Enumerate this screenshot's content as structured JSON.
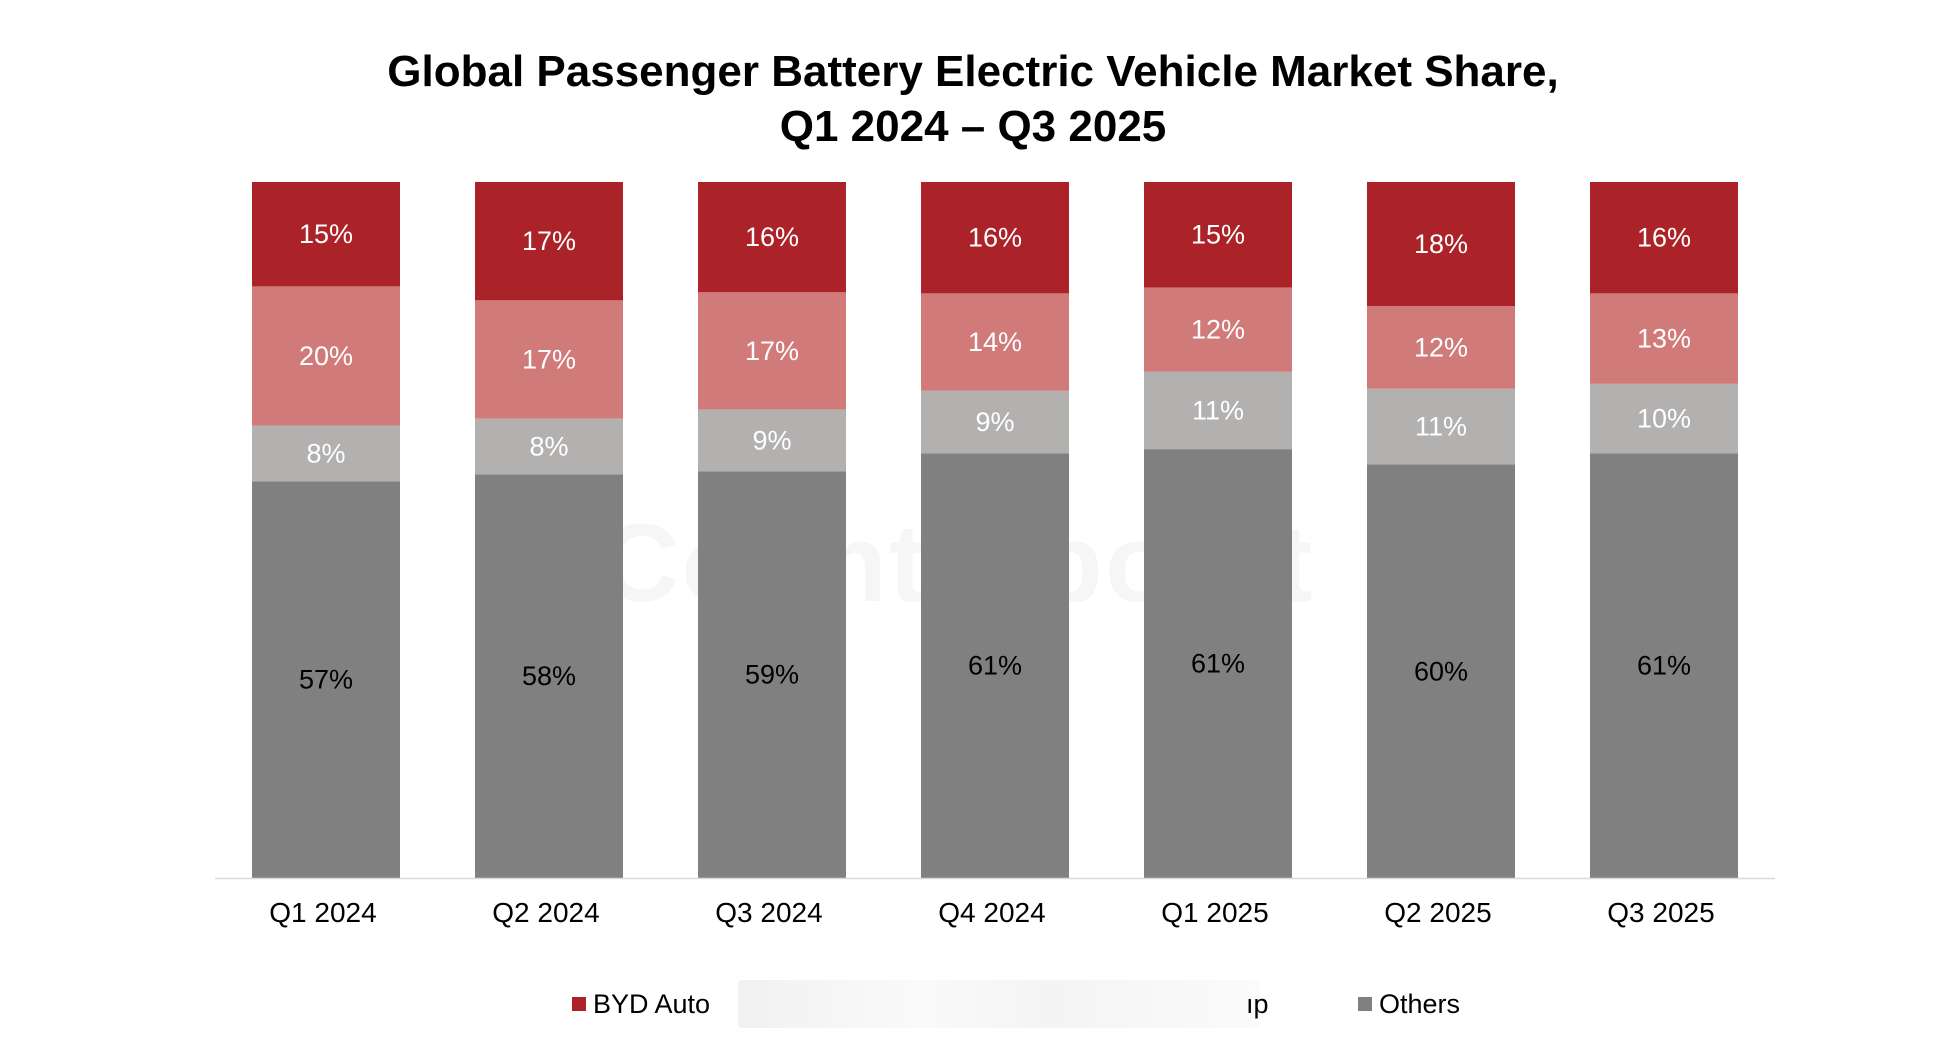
{
  "chart_data": {
    "type": "stacked-bar",
    "title_lines": [
      "Global Passenger Battery Electric Vehicle Market Share,",
      "Q1 2024 – Q3 2025"
    ],
    "categories": [
      "Q1 2024",
      "Q2 2024",
      "Q3 2024",
      "Q4 2024",
      "Q1 2025",
      "Q2 2025",
      "Q3 2025"
    ],
    "series": [
      {
        "name": "Others",
        "color": "#808080",
        "label_color": "#000000",
        "values": [
          57,
          58,
          59,
          61,
          61,
          60,
          61
        ]
      },
      {
        "name": "",
        "color": "#b3b0b0",
        "label_color": "#ffffff",
        "values": [
          8,
          8,
          9,
          9,
          11,
          11,
          10
        ]
      },
      {
        "name": "",
        "color": "#d07b7a",
        "label_color": "#ffffff",
        "values": [
          20,
          17,
          17,
          14,
          12,
          12,
          13
        ]
      },
      {
        "name": "BYD Auto",
        "color": "#ab2328",
        "label_color": "#ffffff",
        "values": [
          15,
          17,
          16,
          16,
          15,
          18,
          16
        ]
      }
    ],
    "ylim": [
      0,
      100
    ],
    "grid": false,
    "legend": [
      {
        "name": "BYD Auto",
        "color": "#ab2328"
      },
      {
        "name": "Others",
        "color": "#808080"
      }
    ],
    "legend_placement": "bottom",
    "legend_partial_text": "ıp",
    "value_suffix": "%"
  },
  "watermark": "Counterpoint"
}
